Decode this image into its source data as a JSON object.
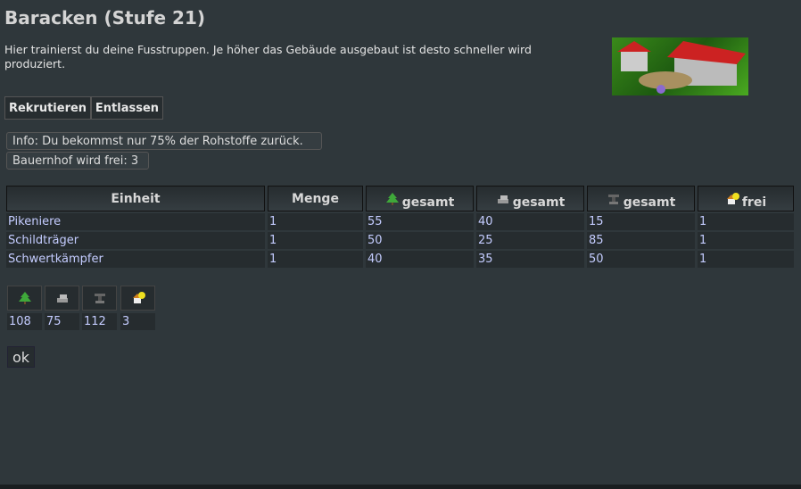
{
  "title": "Baracken (Stufe 21)",
  "description": "Hier trainierst du deine Fusstruppen. Je höher das Gebäude ausgebaut ist desto schneller wird produziert.",
  "tabs": {
    "recruit": "Rekrutieren",
    "dismiss": "Entlassen"
  },
  "info": [
    "Info: Du bekommst nur 75% der Rohstoffe zurück.",
    "Bauernhof wird frei: 3"
  ],
  "table": {
    "headers": [
      "Einheit",
      "Menge",
      "gesamt",
      "gesamt",
      "gesamt",
      "frei"
    ],
    "header_icons": [
      "",
      "",
      "wood-icon",
      "stone-icon",
      "iron-icon",
      "farm-icon"
    ],
    "rows": [
      [
        "Pikeniere",
        "1",
        "55",
        "40",
        "15",
        "1"
      ],
      [
        "Schildträger",
        "1",
        "50",
        "25",
        "85",
        "1"
      ],
      [
        "Schwertkämpfer",
        "1",
        "40",
        "35",
        "50",
        "1"
      ]
    ]
  },
  "summary": {
    "icons": [
      "wood-icon",
      "stone-icon",
      "iron-icon",
      "farm-icon"
    ],
    "values": [
      "108",
      "75",
      "112",
      "3"
    ]
  },
  "ok_label": "ok"
}
